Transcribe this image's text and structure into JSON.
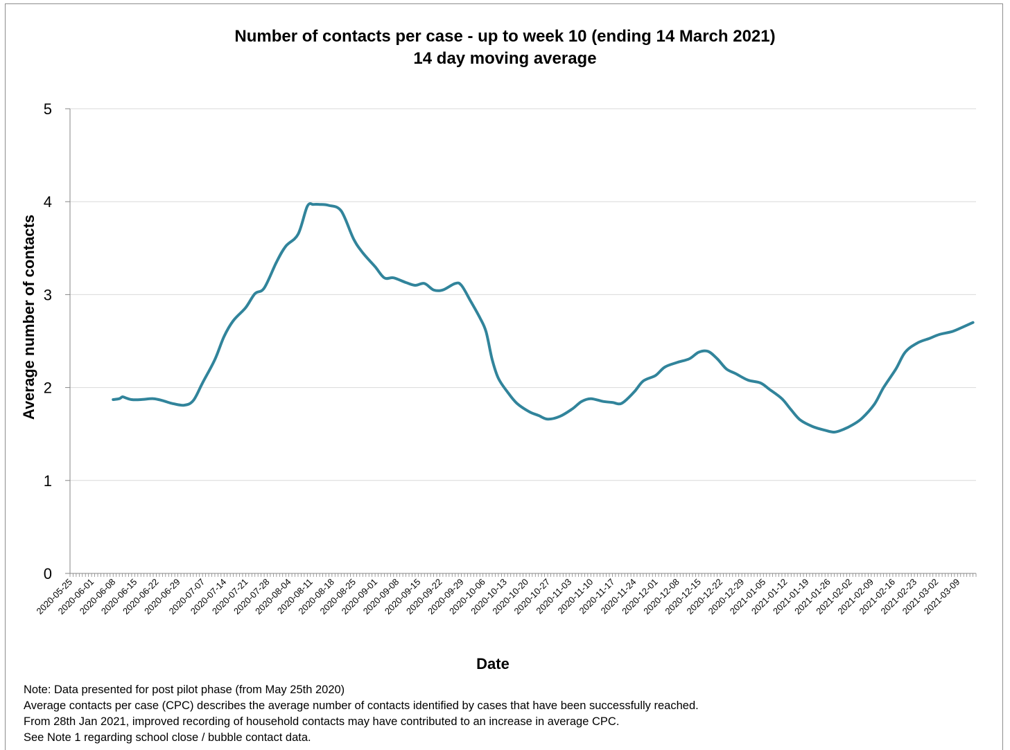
{
  "chart_data": {
    "type": "line",
    "title": "Number of contacts per case - up to week 10 (ending 14 March 2021)",
    "subtitle": "14 day moving average",
    "xlabel": "Date",
    "ylabel": "Average number of contacts",
    "ylim": [
      0,
      5
    ],
    "yticks": [
      "0",
      "1",
      "2",
      "3",
      "4",
      "5"
    ],
    "grid": true,
    "x_range": [
      "2020-05-25",
      "2021-03-14"
    ],
    "xticks": [
      "2020-05-25",
      "2020-06-01",
      "2020-06-08",
      "2020-06-15",
      "2020-06-22",
      "2020-06-29",
      "2020-07-07",
      "2020-07-14",
      "2020-07-21",
      "2020-07-28",
      "2020-08-04",
      "2020-08-11",
      "2020-08-18",
      "2020-08-25",
      "2020-09-01",
      "2020-09-08",
      "2020-09-15",
      "2020-09-22",
      "2020-09-29",
      "2020-10-06",
      "2020-10-13",
      "2020-10-20",
      "2020-10-27",
      "2020-11-03",
      "2020-11-10",
      "2020-11-17",
      "2020-11-24",
      "2020-12-01",
      "2020-12-08",
      "2020-12-15",
      "2020-12-22",
      "2020-12-29",
      "2021-01-05",
      "2021-01-12",
      "2021-01-19",
      "2021-01-26",
      "2021-02-02",
      "2021-02-09",
      "2021-02-16",
      "2021-02-23",
      "2021-03-02",
      "2021-03-09"
    ],
    "series": [
      {
        "color": "#31849B",
        "x": [
          "2020-06-08",
          "2020-06-10",
          "2020-06-11",
          "2020-06-12",
          "2020-06-14",
          "2020-06-17",
          "2020-06-21",
          "2020-06-24",
          "2020-06-27",
          "2020-07-01",
          "2020-07-04",
          "2020-07-07",
          "2020-07-11",
          "2020-07-14",
          "2020-07-17",
          "2020-07-21",
          "2020-07-24",
          "2020-07-27",
          "2020-07-31",
          "2020-08-03",
          "2020-08-07",
          "2020-08-10",
          "2020-08-12",
          "2020-08-14",
          "2020-08-17",
          "2020-08-21",
          "2020-08-25",
          "2020-08-28",
          "2020-09-01",
          "2020-09-04",
          "2020-09-07",
          "2020-09-11",
          "2020-09-14",
          "2020-09-17",
          "2020-09-20",
          "2020-09-23",
          "2020-09-27",
          "2020-09-29",
          "2020-10-02",
          "2020-10-05",
          "2020-10-07",
          "2020-10-09",
          "2020-10-11",
          "2020-10-14",
          "2020-10-17",
          "2020-10-21",
          "2020-10-24",
          "2020-10-27",
          "2020-10-31",
          "2020-11-04",
          "2020-11-07",
          "2020-11-10",
          "2020-11-14",
          "2020-11-17",
          "2020-11-20",
          "2020-11-24",
          "2020-11-27",
          "2020-12-01",
          "2020-12-04",
          "2020-12-08",
          "2020-12-12",
          "2020-12-15",
          "2020-12-18",
          "2020-12-21",
          "2020-12-24",
          "2020-12-27",
          "2020-12-31",
          "2021-01-04",
          "2021-01-07",
          "2021-01-11",
          "2021-01-14",
          "2021-01-17",
          "2021-01-21",
          "2021-01-25",
          "2021-01-28",
          "2021-01-31",
          "2021-02-03",
          "2021-02-06",
          "2021-02-10",
          "2021-02-13",
          "2021-02-17",
          "2021-02-20",
          "2021-02-24",
          "2021-02-28",
          "2021-03-03",
          "2021-03-07",
          "2021-03-10",
          "2021-03-14"
        ],
        "y": [
          1.87,
          1.88,
          1.9,
          1.89,
          1.87,
          1.87,
          1.88,
          1.86,
          1.83,
          1.81,
          1.86,
          2.05,
          2.3,
          2.55,
          2.72,
          2.86,
          3.01,
          3.07,
          3.35,
          3.52,
          3.65,
          3.95,
          3.97,
          3.97,
          3.96,
          3.9,
          3.6,
          3.45,
          3.3,
          3.18,
          3.18,
          3.13,
          3.1,
          3.12,
          3.05,
          3.05,
          3.12,
          3.1,
          2.93,
          2.75,
          2.6,
          2.3,
          2.1,
          1.95,
          1.83,
          1.74,
          1.7,
          1.66,
          1.69,
          1.77,
          1.85,
          1.88,
          1.85,
          1.84,
          1.83,
          1.95,
          2.07,
          2.13,
          2.22,
          2.27,
          2.31,
          2.38,
          2.39,
          2.31,
          2.2,
          2.15,
          2.08,
          2.05,
          1.98,
          1.88,
          1.76,
          1.65,
          1.58,
          1.54,
          1.52,
          1.55,
          1.6,
          1.67,
          1.82,
          2.0,
          2.2,
          2.38,
          2.48,
          2.53,
          2.57,
          2.6,
          2.64,
          2.7
        ]
      }
    ]
  },
  "notes": [
    "Note: Data presented  for post pilot phase (from May 25th 2020)",
    "Average contacts per case (CPC) describes the average number of contacts identified by cases that have been successfully reached.",
    "From 28th Jan 2021, improved recording of household contacts may have contributed to an increase in average CPC.",
    "See Note 1 regarding school close / bubble contact data."
  ]
}
